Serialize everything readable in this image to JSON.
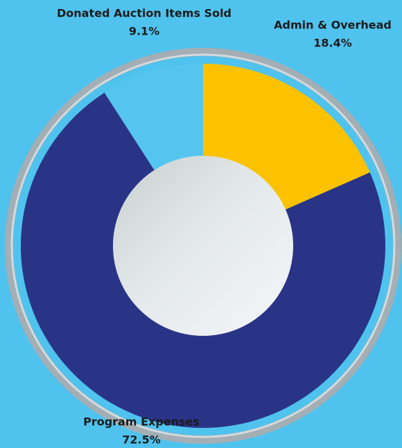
{
  "chart_data": {
    "type": "donut",
    "categories": [
      "Admin & Overhead",
      "Program Expenses",
      "Donated Auction Items Sold"
    ],
    "values": [
      18.4,
      72.5,
      9.1
    ],
    "value_labels": [
      "18.4%",
      "72.5%",
      "9.1%"
    ],
    "colors": [
      "#fcc200",
      "#2a3487",
      "#55c5f0"
    ]
  }
}
